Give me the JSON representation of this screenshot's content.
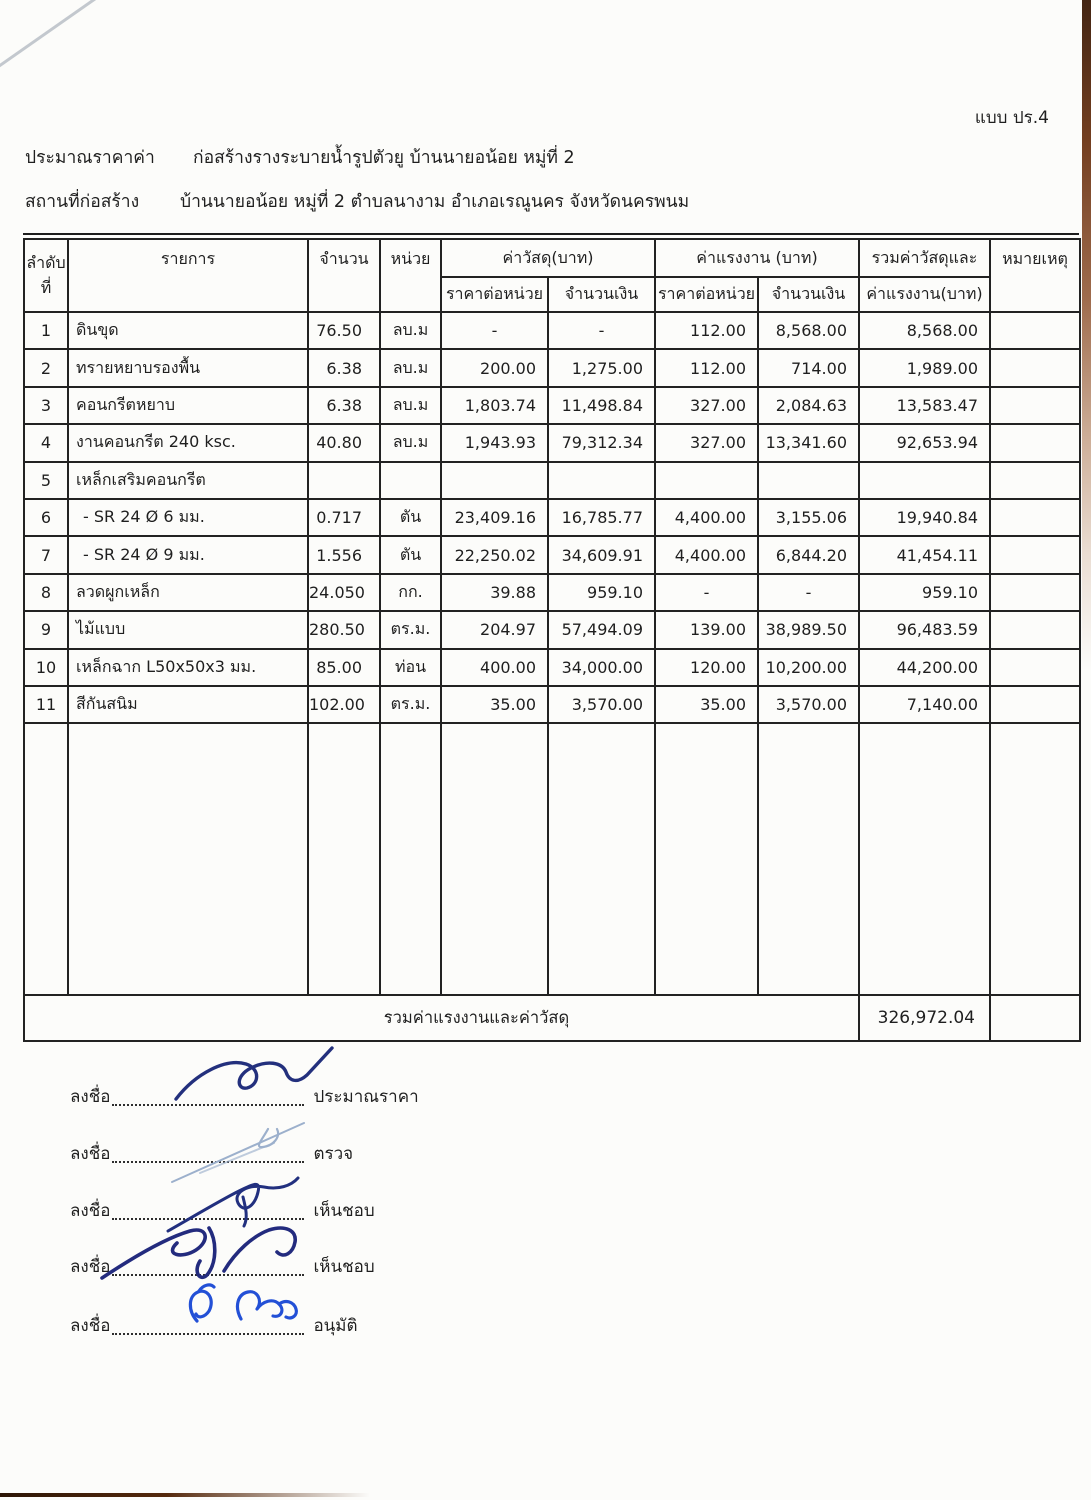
{
  "form_code": "แบบ ปร.4",
  "title": {
    "label1": "ประมาณราคาค่า",
    "value1": "ก่อสร้างรางระบายน้ำรูปตัวยู  บ้านนายอน้อย  หมู่ที่ 2",
    "label2": "สถานที่ก่อสร้าง",
    "value2": "บ้านนายอน้อย  หมู่ที่ 2  ตำบลนางาม  อำเภอเรณูนคร  จังหวัดนครพนม"
  },
  "table": {
    "headers": {
      "no_line1": "ลำดับ",
      "no_line2": "ที่",
      "item": "รายการ",
      "qty": "จำนวน",
      "unit": "หน่วย",
      "material_group": "ค่าวัสดุ(บาท)",
      "labor_group": "ค่าแรงงาน (บาท)",
      "unit_price": "ราคาต่อหน่วย",
      "amount": "จำนวนเงิน",
      "total_line1": "รวมค่าวัสดุและ",
      "total_line2": "ค่าแรงงาน(บาท)",
      "note": "หมายเหตุ"
    },
    "rows": [
      {
        "no": "1",
        "item": "ดินขุด",
        "qty": "76.50",
        "unit": "ลบ.ม",
        "mat_unit": "-",
        "mat_amt": "-",
        "lab_unit": "112.00",
        "lab_amt": "8,568.00",
        "total": "8,568.00",
        "note": ""
      },
      {
        "no": "2",
        "item": "ทรายหยาบรองพื้น",
        "qty": "6.38",
        "unit": "ลบ.ม",
        "mat_unit": "200.00",
        "mat_amt": "1,275.00",
        "lab_unit": "112.00",
        "lab_amt": "714.00",
        "total": "1,989.00",
        "note": ""
      },
      {
        "no": "3",
        "item": "คอนกรีตหยาบ",
        "qty": "6.38",
        "unit": "ลบ.ม",
        "mat_unit": "1,803.74",
        "mat_amt": "11,498.84",
        "lab_unit": "327.00",
        "lab_amt": "2,084.63",
        "total": "13,583.47",
        "note": ""
      },
      {
        "no": "4",
        "item": "งานคอนกรีต 240 ksc.",
        "qty": "40.80",
        "unit": "ลบ.ม",
        "mat_unit": "1,943.93",
        "mat_amt": "79,312.34",
        "lab_unit": "327.00",
        "lab_amt": "13,341.60",
        "total": "92,653.94",
        "note": ""
      },
      {
        "no": "5",
        "item": "เหล็กเสริมคอนกรีต",
        "qty": "",
        "unit": "",
        "mat_unit": "",
        "mat_amt": "",
        "lab_unit": "",
        "lab_amt": "",
        "total": "",
        "note": ""
      },
      {
        "no": "6",
        "item": "- SR 24 Ø 6 มม.",
        "qty": "0.717",
        "unit": "ตัน",
        "mat_unit": "23,409.16",
        "mat_amt": "16,785.77",
        "lab_unit": "4,400.00",
        "lab_amt": "3,155.06",
        "total": "19,940.84",
        "note": ""
      },
      {
        "no": "7",
        "item": "- SR 24 Ø 9 มม.",
        "qty": "1.556",
        "unit": "ตัน",
        "mat_unit": "22,250.02",
        "mat_amt": "34,609.91",
        "lab_unit": "4,400.00",
        "lab_amt": "6,844.20",
        "total": "41,454.11",
        "note": ""
      },
      {
        "no": "8",
        "item": "ลวดผูกเหล็ก",
        "qty": "24.050",
        "unit": "กก.",
        "mat_unit": "39.88",
        "mat_amt": "959.10",
        "lab_unit": "-",
        "lab_amt": "-",
        "total": "959.10",
        "note": ""
      },
      {
        "no": "9",
        "item": "ไม้แบบ",
        "qty": "280.50",
        "unit": "ตร.ม.",
        "mat_unit": "204.97",
        "mat_amt": "57,494.09",
        "lab_unit": "139.00",
        "lab_amt": "38,989.50",
        "total": "96,483.59",
        "note": ""
      },
      {
        "no": "10",
        "item": "เหล็กฉาก L50x50x3 มม.",
        "qty": "85.00",
        "unit": "ท่อน",
        "mat_unit": "400.00",
        "mat_amt": "34,000.00",
        "lab_unit": "120.00",
        "lab_amt": "10,200.00",
        "total": "44,200.00",
        "note": ""
      },
      {
        "no": "11",
        "item": "สีกันสนิม",
        "qty": "102.00",
        "unit": "ตร.ม.",
        "mat_unit": "35.00",
        "mat_amt": "3,570.00",
        "lab_unit": "35.00",
        "lab_amt": "3,570.00",
        "total": "7,140.00",
        "note": ""
      }
    ],
    "footer": {
      "label": "รวมค่าแรงงานและค่าวัสดุ",
      "total": "326,972.04"
    }
  },
  "signatures": {
    "sign_label": "ลงชื่อ",
    "roles": [
      "ประมาณราคา",
      "ตรวจ",
      "เห็นชอบ",
      "เห็นชอบ",
      "อนุมัติ"
    ],
    "ink_colors": [
      "#23307d",
      "#9cb0cc",
      "#22307f",
      "#232b7e",
      "#2350d6"
    ]
  },
  "colors": {
    "paper": "#fcfcfa",
    "text": "#1f1f1f",
    "border": "#222222",
    "scan_edge": "#682f0e"
  }
}
